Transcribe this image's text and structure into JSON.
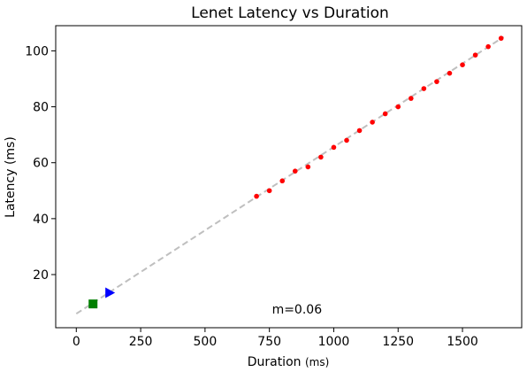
{
  "chart_data": {
    "type": "scatter",
    "title": "Lenet Latency vs Duration",
    "xlabel": "Duration",
    "xlabel_unit": "(ms)",
    "ylabel": "Latency (ms)",
    "xlim": [
      -80,
      1730
    ],
    "ylim": [
      1,
      109
    ],
    "xticks": [
      0,
      250,
      500,
      750,
      1000,
      1250,
      1500
    ],
    "xtick_labels": [
      "0",
      "250",
      "500",
      "750",
      "1000",
      "1250",
      "1500"
    ],
    "yticks": [
      20,
      40,
      60,
      80,
      100
    ],
    "ytick_labels": [
      "20",
      "40",
      "60",
      "80",
      "100"
    ],
    "grid": false,
    "annotation": "m=0.06",
    "annotation_pos": [
      760,
      6
    ],
    "series": [
      {
        "marker": "circle",
        "color": "#ff0000",
        "x": [
          700,
          750,
          800,
          850,
          900,
          950,
          1000,
          1050,
          1100,
          1150,
          1200,
          1250,
          1300,
          1350,
          1400,
          1450,
          1500,
          1550,
          1600,
          1650
        ],
        "y": [
          48,
          50,
          53.5,
          57,
          58.5,
          62,
          65.5,
          68,
          71.5,
          74.5,
          77.5,
          80,
          83,
          86.5,
          89,
          92,
          95,
          98.5,
          101.5,
          104.5
        ]
      },
      {
        "marker": "triangle-right",
        "color": "#0000ff",
        "x": [
          130
        ],
        "y": [
          13.5
        ]
      },
      {
        "marker": "square",
        "color": "#008000",
        "x": [
          65
        ],
        "y": [
          9.5
        ]
      }
    ],
    "fit_line": {
      "x": [
        0,
        1660
      ],
      "y": [
        6,
        105
      ],
      "color": "#bfbfbf",
      "style": "dashed"
    }
  }
}
